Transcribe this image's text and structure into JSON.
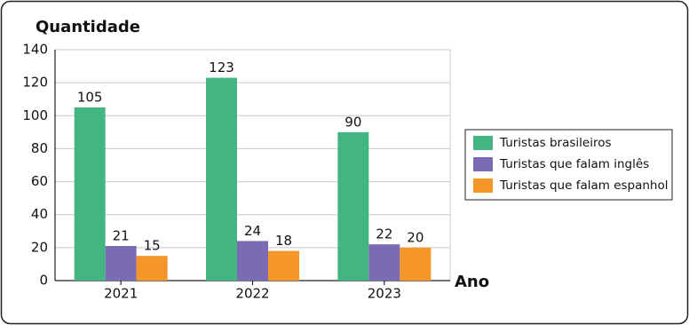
{
  "chart_data": {
    "type": "bar",
    "y_label": "Quantidade",
    "x_label": "Ano",
    "categories": [
      "2021",
      "2022",
      "2023"
    ],
    "series": [
      {
        "name": "Turistas brasileiros",
        "color": "#43b581",
        "values": [
          105,
          123,
          90
        ]
      },
      {
        "name": "Turistas que falam inglês",
        "color": "#7b6bb5",
        "values": [
          21,
          24,
          22
        ]
      },
      {
        "name": "Turistas que falam espanhol",
        "color": "#f5962a",
        "values": [
          15,
          18,
          20
        ]
      }
    ],
    "ylim": [
      0,
      140
    ],
    "yticks": [
      0,
      20,
      40,
      60,
      80,
      100,
      120,
      140
    ],
    "grid": true,
    "legend": "right"
  }
}
